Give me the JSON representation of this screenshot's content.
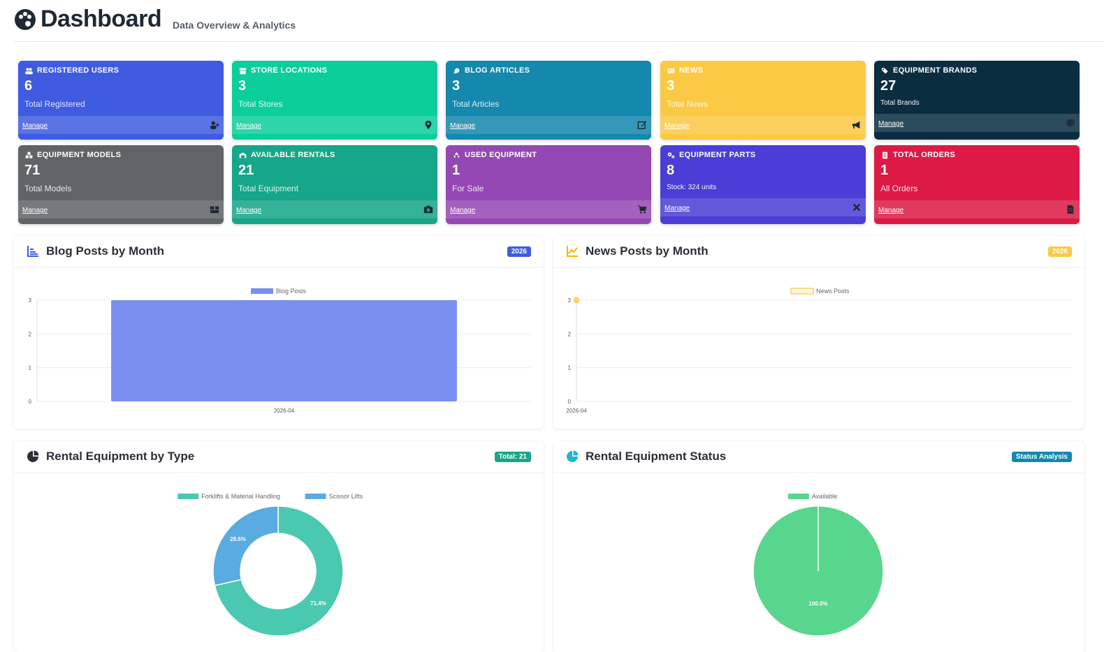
{
  "header": {
    "title": "Dashboard",
    "subtitle": "Data Overview & Analytics",
    "logo_icon": "palette-icon"
  },
  "cards": [
    {
      "title": "REGISTERED USERS",
      "value": "6",
      "sub": "Total Registered",
      "link": "Manage",
      "icon": "users-icon",
      "foot_icon": "user-plus-icon",
      "color": "#3f5be0"
    },
    {
      "title": "STORE LOCATIONS",
      "value": "3",
      "sub": "Total Stores",
      "link": "Manage",
      "icon": "store-icon",
      "foot_icon": "map-pin-icon",
      "color": "#0bcf9a"
    },
    {
      "title": "BLOG ARTICLES",
      "value": "3",
      "sub": "Total Articles",
      "link": "Manage",
      "icon": "blog-icon",
      "foot_icon": "edit-icon",
      "color": "#1488ad"
    },
    {
      "title": "NEWS",
      "value": "3",
      "sub": "Total News",
      "link": "Manage",
      "icon": "newspaper-icon",
      "foot_icon": "megaphone-icon",
      "color": "#fcc945"
    },
    {
      "title": "EQUIPMENT BRANDS",
      "value": "27",
      "sub": "Total Brands",
      "link": "Manage",
      "icon": "tags-icon",
      "foot_icon": "copyright-icon",
      "color": "#0a2e40"
    },
    {
      "title": "EQUIPMENT MODELS",
      "value": "71",
      "sub": "Total Models",
      "link": "Manage",
      "icon": "cubes-icon",
      "foot_icon": "boxes-icon",
      "color": "#606469"
    },
    {
      "title": "AVAILABLE RENTALS",
      "value": "21",
      "sub": "Total Equipment",
      "link": "Manage",
      "icon": "warehouse-icon",
      "foot_icon": "camera-icon",
      "color": "#16a689"
    },
    {
      "title": "USED EQUIPMENT",
      "value": "1",
      "sub": "For Sale",
      "link": "Manage",
      "icon": "recycle-icon",
      "foot_icon": "cart-icon",
      "color": "#9548b3"
    },
    {
      "title": "EQUIPMENT PARTS",
      "value": "8",
      "sub": "Stock: 324 units",
      "link": "Manage",
      "icon": "cogs-icon",
      "foot_icon": "tools-icon",
      "color": "#4a3ed6"
    },
    {
      "title": "TOTAL ORDERS",
      "value": "1",
      "sub": "All Orders",
      "link": "Manage",
      "icon": "receipt-icon",
      "foot_icon": "file-icon",
      "color": "#dc1a45"
    }
  ],
  "panels": {
    "blog": {
      "title": "Blog Posts by Month",
      "badge": "2026",
      "badge_color": "#3f5be0",
      "icon": "bar-chart-icon",
      "icon_color": "#3f5be0"
    },
    "news": {
      "title": "News Posts by Month",
      "badge": "2026",
      "badge_color": "#fcc945",
      "icon": "line-chart-icon",
      "icon_color": "#f5b400"
    },
    "rental_type": {
      "title": "Rental Equipment by Type",
      "badge": "Total: 21",
      "badge_color": "#16a689",
      "icon": "pie-chart-icon",
      "icon_color": "#2a2f36"
    },
    "rental_status": {
      "title": "Rental Equipment Status",
      "badge": "Status Analysis",
      "badge_color": "#1488ad",
      "icon": "pie-chart-icon",
      "icon_color": "#1fb5d6"
    }
  },
  "chart_data": [
    {
      "type": "bar",
      "legend": [
        "Blog Posts"
      ],
      "categories": [
        "2026-04"
      ],
      "series": [
        {
          "name": "Blog Posts",
          "values": [
            3
          ],
          "color": "#7b8ff0"
        }
      ],
      "yticks": [
        "0",
        "1",
        "2",
        "3"
      ],
      "ylim": [
        0,
        3
      ]
    },
    {
      "type": "line",
      "legend": [
        "News Posts"
      ],
      "categories": [
        "2026-04"
      ],
      "series": [
        {
          "name": "News Posts",
          "values": [
            3
          ],
          "color": "#fcd45f"
        }
      ],
      "yticks": [
        "0",
        "1",
        "2",
        "3"
      ],
      "ylim": [
        0,
        3
      ]
    },
    {
      "type": "pie",
      "variant": "doughnut",
      "legend": [
        "Forklifts & Material Handling",
        "Scissor Lifts"
      ],
      "labels": [
        "Forklifts & Material Handling",
        "Scissor Lifts"
      ],
      "values": [
        71.4,
        28.6
      ],
      "value_labels": [
        "71.4%",
        "28.6%"
      ],
      "colors": [
        "#4bc9b0",
        "#5aabe0"
      ]
    },
    {
      "type": "pie",
      "legend": [
        "Available"
      ],
      "labels": [
        "Available"
      ],
      "values": [
        100.0
      ],
      "value_labels": [
        "100.0%"
      ],
      "colors": [
        "#58d68d"
      ]
    }
  ]
}
